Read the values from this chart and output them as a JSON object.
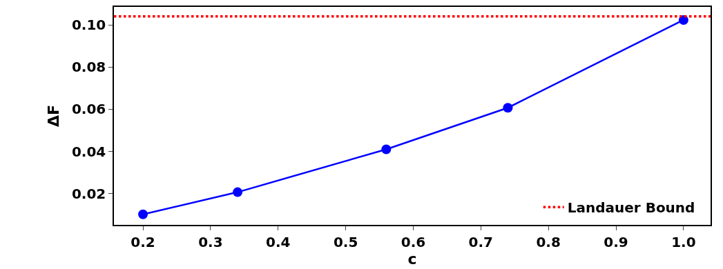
{
  "chart_data": {
    "type": "line",
    "xlabel": "c",
    "ylabel": "ΔF",
    "x": [
      0.2,
      0.34,
      0.56,
      0.74,
      1.0
    ],
    "series": [
      {
        "color": "#0000ff",
        "values": [
          0.0102,
          0.0207,
          0.041,
          0.0607,
          0.1023
        ]
      }
    ],
    "marker": "circle",
    "line_style": "solid",
    "xlim": [
      0.157,
      1.04
    ],
    "xticks": [
      {
        "value": 0.2,
        "label": "0.2"
      },
      {
        "value": 0.3,
        "label": "0.3"
      },
      {
        "value": 0.4,
        "label": "0.4"
      },
      {
        "value": 0.5,
        "label": "0.5"
      },
      {
        "value": 0.6,
        "label": "0.6"
      },
      {
        "value": 0.7,
        "label": "0.7"
      },
      {
        "value": 0.8,
        "label": "0.8"
      },
      {
        "value": 0.9,
        "label": "0.9"
      },
      {
        "value": 1.0,
        "label": "1.0"
      }
    ],
    "ylim": [
      0.0052,
      0.1085
    ],
    "yticks": [
      {
        "value": 0.02,
        "label": "0.02"
      },
      {
        "value": 0.04,
        "label": "0.04"
      },
      {
        "value": 0.06,
        "label": "0.06"
      },
      {
        "value": 0.08,
        "label": "0.08"
      },
      {
        "value": 0.1,
        "label": "0.10"
      }
    ],
    "ref_lines": [
      {
        "axis": "y",
        "value": 0.104,
        "label": "Landauer Bound",
        "color": "#ff0000",
        "line_style": "dotted"
      }
    ],
    "grid": false,
    "legend": "bottom right"
  }
}
